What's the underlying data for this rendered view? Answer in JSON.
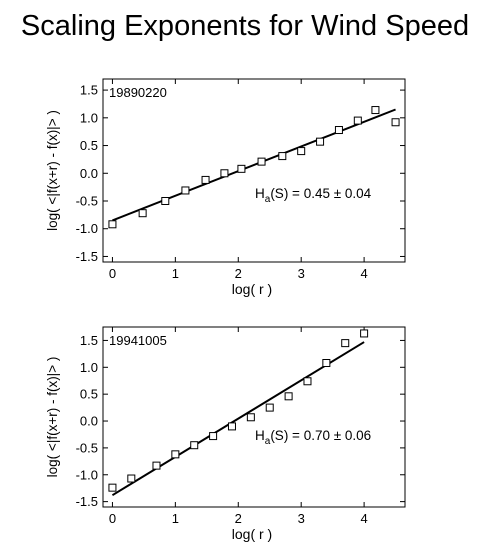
{
  "title": "Scaling Exponents for Wind Speed",
  "chart_data": [
    {
      "type": "scatter",
      "date_label": "19890220",
      "annotation": {
        "prefix": "H",
        "subscript": "a",
        "suffix": "(S) = 0.45 ± 0.04"
      },
      "xlabel": "log( r )",
      "ylabel": "log( <|f(x+r) - f(x)|> )",
      "xlim": [
        -0.15,
        4.65
      ],
      "ylim": [
        -1.6,
        1.7
      ],
      "xticks": [
        0,
        1,
        2,
        3,
        4
      ],
      "yticks": [
        -1.5,
        -1.0,
        -0.5,
        0.0,
        0.5,
        1.0,
        1.5
      ],
      "ytick_labels": [
        "-1.5",
        "-1.0",
        "-0.5",
        "0.0",
        "0.5",
        "1.0",
        "1.5"
      ],
      "grid": false,
      "x": [
        0.0,
        0.48,
        0.84,
        1.16,
        1.48,
        1.78,
        2.05,
        2.37,
        2.7,
        3.0,
        3.3,
        3.6,
        3.9,
        4.18,
        4.5
      ],
      "y": [
        -0.92,
        -0.72,
        -0.5,
        -0.31,
        -0.12,
        0.0,
        0.08,
        0.21,
        0.31,
        0.4,
        0.57,
        0.78,
        0.95,
        1.14,
        0.92
      ],
      "fit": {
        "x": [
          0.0,
          4.5
        ],
        "y": [
          -0.85,
          1.15
        ]
      }
    },
    {
      "type": "scatter",
      "date_label": "19941005",
      "annotation": {
        "prefix": "H",
        "subscript": "a",
        "suffix": "(S) = 0.70 ± 0.06"
      },
      "xlabel": "log( r )",
      "ylabel": "log( <|f(x+r) - f(x)|> )",
      "xlim": [
        -0.15,
        4.65
      ],
      "ylim": [
        -1.6,
        1.75
      ],
      "xticks": [
        0,
        1,
        2,
        3,
        4
      ],
      "yticks": [
        -1.5,
        -1.0,
        -0.5,
        0.0,
        0.5,
        1.0,
        1.5
      ],
      "ytick_labels": [
        "-1.5",
        "-1.0",
        "-0.5",
        "0.0",
        "0.5",
        "1.0",
        "1.5"
      ],
      "grid": false,
      "x": [
        0.0,
        0.3,
        0.7,
        1.0,
        1.3,
        1.6,
        1.9,
        2.2,
        2.5,
        2.8,
        3.1,
        3.4,
        3.7,
        4.0
      ],
      "y": [
        -1.24,
        -1.07,
        -0.83,
        -0.62,
        -0.45,
        -0.28,
        -0.1,
        0.07,
        0.25,
        0.46,
        0.74,
        1.08,
        1.45,
        1.63
      ],
      "fit": {
        "x": [
          0.0,
          4.0
        ],
        "y": [
          -1.38,
          1.47
        ]
      }
    }
  ]
}
